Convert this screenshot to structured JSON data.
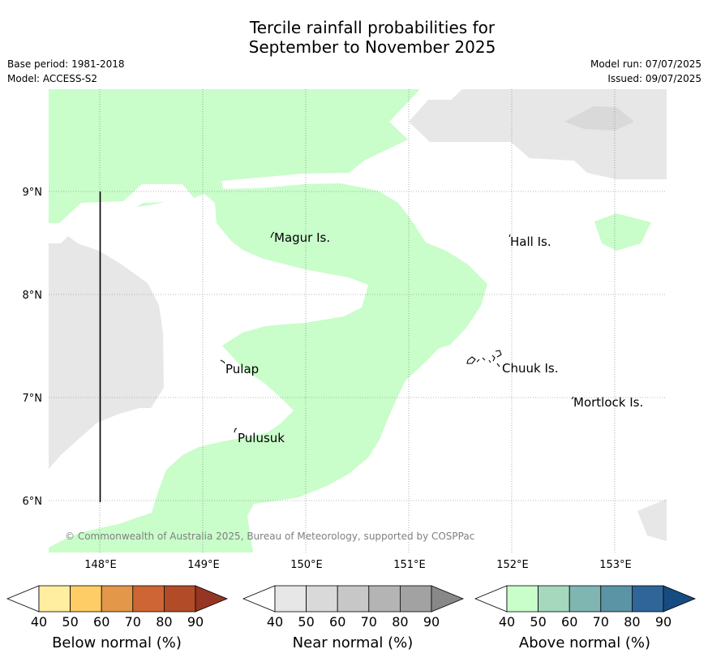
{
  "title": {
    "line1": "Tercile rainfall probabilities for",
    "line2": "September to November 2025"
  },
  "meta": {
    "base_period": "Base period: 1981-2018",
    "model": "Model: ACCESS-S2",
    "model_run": "Model run: 07/07/2025",
    "issued": "Issued: 09/07/2025"
  },
  "map": {
    "lat_labels": [
      "9°N",
      "8°N",
      "7°N",
      "6°N"
    ],
    "lon_labels": [
      "148°E",
      "149°E",
      "150°E",
      "151°E",
      "152°E",
      "153°E"
    ],
    "places": [
      {
        "name": "Magur Is.",
        "lon": 149.69,
        "lat": 8.55
      },
      {
        "name": "Hall Is.",
        "lon": 151.98,
        "lat": 8.52
      },
      {
        "name": "Pulap",
        "lon": 149.2,
        "lat": 7.3
      },
      {
        "name": "Chuuk Is.",
        "lon": 151.85,
        "lat": 7.3
      },
      {
        "name": "Mortlock Is.",
        "lon": 152.6,
        "lat": 6.98
      },
      {
        "name": "Pulusuk",
        "lon": 149.3,
        "lat": 6.68
      }
    ],
    "copyright": "© Commonwealth of Australia 2025, Bureau of Meteorology, supported by COSPPac",
    "colors": {
      "above_40_50": "#c9fdca",
      "near_40_50": "#e7e7e7",
      "near_50_60": "#d9d9d9",
      "background": "#ffffff"
    }
  },
  "colorbars": [
    {
      "title": "Below normal (%)",
      "ticks": [
        "40",
        "50",
        "60",
        "70",
        "80",
        "90"
      ],
      "colors": [
        "#ffffff",
        "#ffeda0",
        "#fecd65",
        "#e29848",
        "#cd6634",
        "#b24c28",
        "#973523"
      ]
    },
    {
      "title": "Near normal (%)",
      "ticks": [
        "40",
        "50",
        "60",
        "70",
        "80",
        "90"
      ],
      "colors": [
        "#ffffff",
        "#e7e7e7",
        "#d9d9d9",
        "#c7c7c7",
        "#b4b4b4",
        "#a2a2a2",
        "#888888"
      ]
    },
    {
      "title": "Above normal (%)",
      "ticks": [
        "40",
        "50",
        "60",
        "70",
        "80",
        "90"
      ],
      "colors": [
        "#ffffff",
        "#c9fdca",
        "#a5d8bd",
        "#7fb6b2",
        "#5b95a5",
        "#30659a",
        "#164c81"
      ]
    }
  ]
}
